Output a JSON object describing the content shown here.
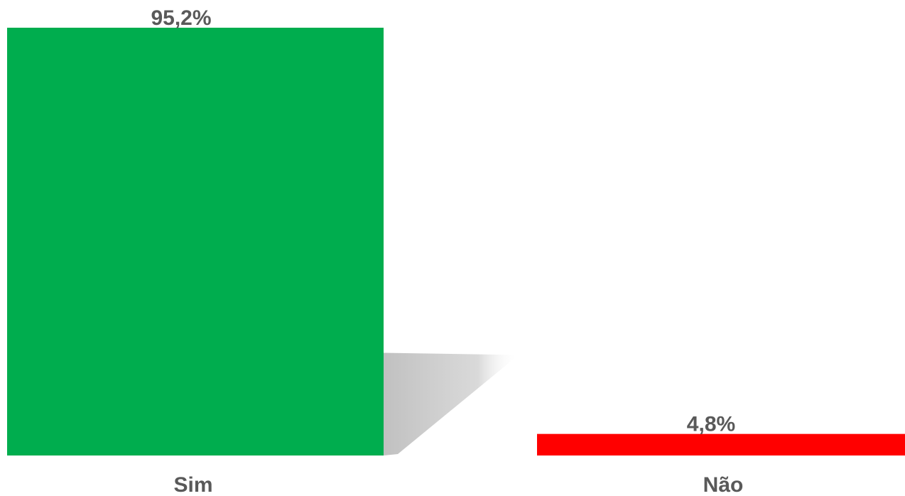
{
  "chart_data": {
    "type": "bar",
    "categories": [
      "Sim",
      "Não"
    ],
    "values": [
      95.2,
      4.8
    ],
    "value_labels": [
      "95,2%",
      "4,8%"
    ],
    "colors": [
      "#00ad4e",
      "#ff0000"
    ],
    "unit": "%",
    "ylim": [
      0,
      100
    ],
    "grid": false,
    "legend": "none"
  }
}
